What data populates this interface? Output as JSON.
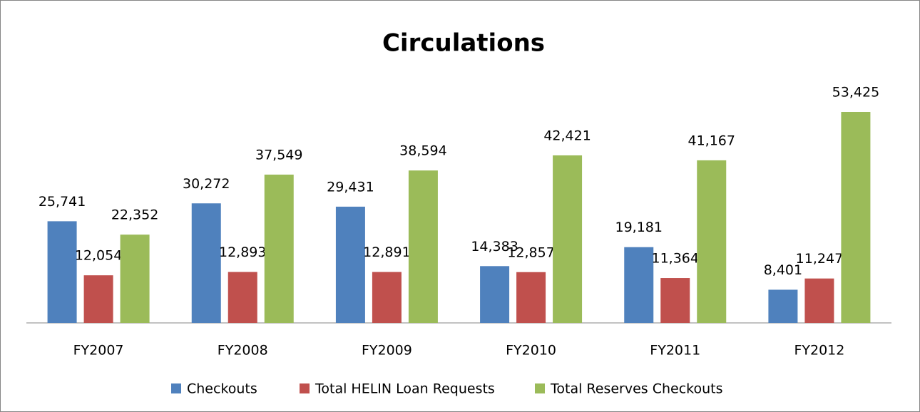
{
  "chart_data": {
    "type": "bar",
    "title": "Circulations",
    "categories": [
      "FY2007",
      "FY2008",
      "FY2009",
      "FY2010",
      "FY2011",
      "FY2012"
    ],
    "series": [
      {
        "name": "Checkouts",
        "color": "#4f81bd",
        "values": [
          25741,
          30272,
          29431,
          14383,
          19181,
          8401
        ],
        "value_labels": [
          "25,741",
          "30,272",
          "29,431",
          "14,383",
          "19,181",
          "8,401"
        ]
      },
      {
        "name": "Total HELIN Loan Requests",
        "color": "#c0504d",
        "values": [
          12054,
          12893,
          12891,
          12857,
          11364,
          11247
        ],
        "value_labels": [
          "12,054",
          "12,893",
          "12,891",
          "12,857",
          "11,364",
          "11,247"
        ]
      },
      {
        "name": "Total Reserves Checkouts",
        "color": "#9bbb59",
        "values": [
          22352,
          37549,
          38594,
          42421,
          41167,
          53425
        ],
        "value_labels": [
          "22,352",
          "37,549",
          "38,594",
          "42,421",
          "41,167",
          "53,425"
        ]
      }
    ],
    "legend": "bottom"
  }
}
